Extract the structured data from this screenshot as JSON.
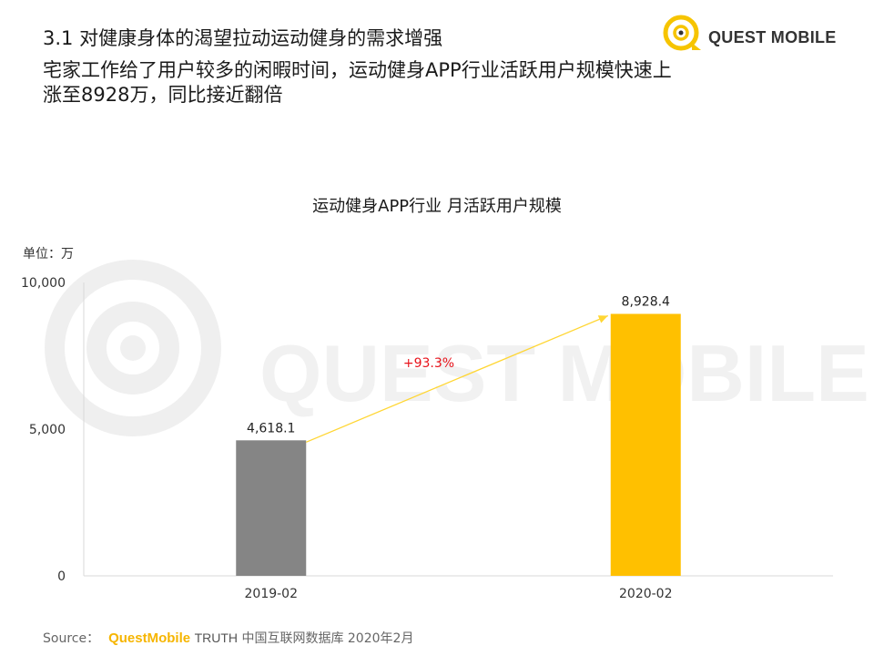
{
  "header": {
    "section_title": "3.1 对健康身体的渴望拉动运动健身的需求增强",
    "headline": "宅家工作给了用户较多的闲暇时间，运动健身APP行业活跃用户规模快速上涨至8928万，同比接近翻倍"
  },
  "logo": {
    "text": "QUEST MOBILE",
    "color": "#f6c400"
  },
  "watermark": {
    "text": "QUEST MOBILE"
  },
  "unit_label": "单位：万",
  "chart_data": {
    "type": "bar",
    "title": "运动健身APP行业 月活跃用户规模",
    "categories": [
      "2019-02",
      "2020-02"
    ],
    "values": [
      4618.1,
      8928.4
    ],
    "value_labels": [
      "4,618.1",
      "8,928.4"
    ],
    "bar_colors": [
      "#858585",
      "#ffc000"
    ],
    "ylim": [
      0,
      10000
    ],
    "yticks": [
      0,
      5000,
      10000
    ],
    "ytick_labels": [
      "0",
      "5,000",
      "10,000"
    ],
    "grid": false,
    "growth_annotation": {
      "text": "+93.3%",
      "color": "#e8131b",
      "arrow_color": "#ffd633"
    }
  },
  "footer": {
    "source_label": "Source：",
    "brand": "QuestMobile",
    "brand_suffix": "TRUTH",
    "source_rest": "中国互联网数据库 2020年2月"
  }
}
